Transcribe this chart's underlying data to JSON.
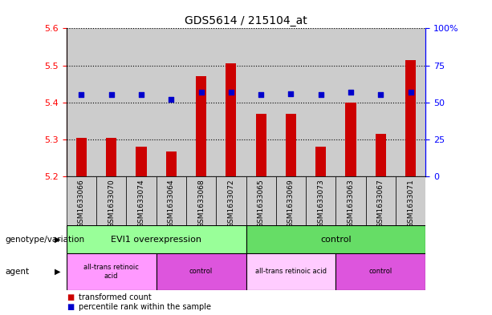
{
  "title": "GDS5614 / 215104_at",
  "samples": [
    "GSM1633066",
    "GSM1633070",
    "GSM1633074",
    "GSM1633064",
    "GSM1633068",
    "GSM1633072",
    "GSM1633065",
    "GSM1633069",
    "GSM1633073",
    "GSM1633063",
    "GSM1633067",
    "GSM1633071"
  ],
  "transformed_count": [
    5.305,
    5.305,
    5.28,
    5.268,
    5.47,
    5.505,
    5.37,
    5.37,
    5.28,
    5.4,
    5.315,
    5.515
  ],
  "percentile_rank": [
    55,
    55,
    55,
    52,
    57,
    57,
    55,
    56,
    55,
    57,
    55,
    57
  ],
  "y_min": 5.2,
  "y_max": 5.6,
  "y_ticks": [
    5.2,
    5.3,
    5.4,
    5.5,
    5.6
  ],
  "y2_ticks": [
    0,
    25,
    50,
    75,
    100
  ],
  "bar_color": "#cc0000",
  "dot_color": "#0000cc",
  "bar_bottom": 5.2,
  "col_bg_color": "#cccccc",
  "genotype_groups": [
    {
      "label": "EVI1 overexpression",
      "start": 0,
      "end": 6,
      "color": "#99ff99"
    },
    {
      "label": "control",
      "start": 6,
      "end": 12,
      "color": "#66dd66"
    }
  ],
  "agent_groups": [
    {
      "label": "all-trans retinoic\nacid",
      "start": 0,
      "end": 3,
      "color": "#ff99ff"
    },
    {
      "label": "control",
      "start": 3,
      "end": 6,
      "color": "#dd55dd"
    },
    {
      "label": "all-trans retinoic acid",
      "start": 6,
      "end": 9,
      "color": "#ffccff"
    },
    {
      "label": "control",
      "start": 9,
      "end": 12,
      "color": "#dd55dd"
    }
  ],
  "genotype_label": "genotype/variation",
  "agent_label": "agent",
  "legend_items": [
    {
      "label": "transformed count",
      "color": "#cc0000"
    },
    {
      "label": "percentile rank within the sample",
      "color": "#0000cc"
    }
  ],
  "bar_width": 0.35
}
